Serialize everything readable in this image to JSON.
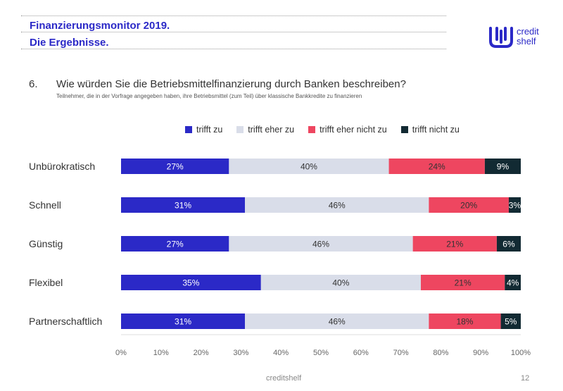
{
  "header": {
    "title_line1": "Finanzierungsmonitor 2019.",
    "title_line2": "Die Ergebnisse."
  },
  "logo": {
    "line1": "credit",
    "line2": "shelf"
  },
  "question": {
    "number": "6.",
    "text": "Wie würden Sie die Betriebsmittelfinanzierung durch Banken beschreiben?",
    "subtext": "Teilnehmer, die in der Vorfrage angegeben haben, ihre Betriebsmittel (zum Teil) über klassische Bankkredite zu finanzieren"
  },
  "legend": [
    {
      "label": "trifft zu",
      "color": "#2b29c7"
    },
    {
      "label": "trifft eher zu",
      "color": "#d9dde9"
    },
    {
      "label": "trifft eher nicht zu",
      "color": "#ee4660"
    },
    {
      "label": "trifft nicht zu",
      "color": "#122a33"
    }
  ],
  "chart_data": {
    "type": "bar",
    "orientation": "horizontal",
    "stacked": true,
    "categories": [
      "Unbürokratisch",
      "Schnell",
      "Günstig",
      "Flexibel",
      "Partnerschaftlich"
    ],
    "series": [
      {
        "name": "trifft zu",
        "values": [
          27,
          31,
          27,
          35,
          31
        ],
        "labels": [
          "27%",
          "31%",
          "27%",
          "35%",
          "31%"
        ]
      },
      {
        "name": "trifft eher zu",
        "values": [
          40,
          46,
          46,
          40,
          46
        ],
        "labels": [
          "40%",
          "46%",
          "46%",
          "40%",
          "46%"
        ]
      },
      {
        "name": "trifft eher nicht zu",
        "values": [
          24,
          20,
          21,
          21,
          18
        ],
        "labels": [
          "24%",
          "20%",
          "21%",
          "21%",
          "18%"
        ]
      },
      {
        "name": "trifft nicht zu",
        "values": [
          9,
          3,
          6,
          4,
          5
        ],
        "labels": [
          "9%",
          "3%",
          "6%",
          "4%",
          "5%"
        ]
      }
    ],
    "xlim": [
      0,
      100
    ],
    "xticks": [
      0,
      10,
      20,
      30,
      40,
      50,
      60,
      70,
      80,
      90,
      100
    ],
    "xtick_labels": [
      "0%",
      "10%",
      "20%",
      "30%",
      "40%",
      "50%",
      "60%",
      "70%",
      "80%",
      "90%",
      "100%"
    ],
    "legend_position": "top"
  },
  "footer": {
    "brand": "creditshelf",
    "page": "12"
  }
}
